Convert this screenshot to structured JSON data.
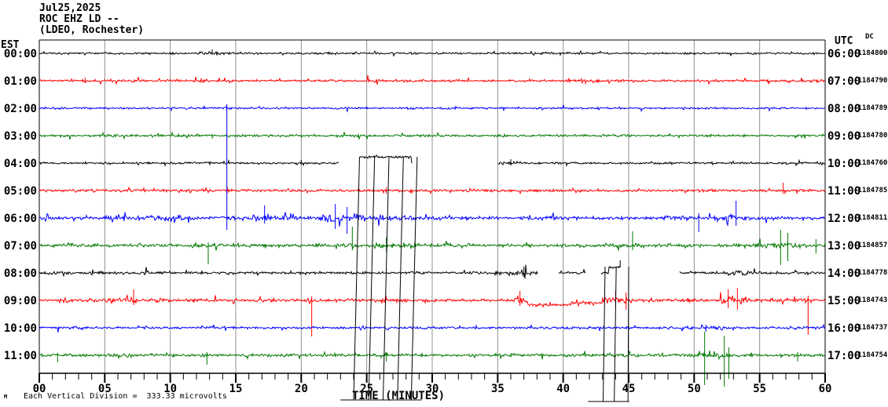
{
  "header": {
    "date": "Jul25,2025",
    "station_code": "ROC EHZ LD --",
    "station_name": "(LDEO, Rochester)"
  },
  "axes": {
    "left_header": "EST",
    "right_header": "UTC",
    "dc_header": "DC",
    "x_title": "TIME (MINUTES)",
    "x_ticks": [
      "00",
      "05",
      "10",
      "15",
      "20",
      "25",
      "30",
      "35",
      "40",
      "45",
      "50",
      "55",
      "60"
    ],
    "minutes_span": 60
  },
  "footer": {
    "watermark": "M",
    "scale_note": "Each Vertical Division =  333.33 microvolts"
  },
  "colors": {
    "black": "#000000",
    "red": "#ff0000",
    "blue": "#0000ff",
    "green": "#007700",
    "grid": "#909090",
    "frame": "#000000",
    "background": "#ffffff"
  },
  "chart_data": {
    "type": "seismogram-helicorder",
    "station": "ROC EHZ LD (LDEO, Rochester)",
    "x_range_minutes": [
      0,
      60
    ],
    "minutes_per_row": 60,
    "rows": [
      {
        "est": "00:00",
        "utc": "06:00",
        "dc": "-1184800",
        "color": "#000000",
        "base_amp": 1.7,
        "bursts": [
          [
            12.3,
            14.2,
            3.0
          ],
          [
            19.5,
            20.3,
            2.6
          ]
        ],
        "gaps": [],
        "offsets": [],
        "spikes": [
          [
            13.2,
            5,
            2
          ]
        ]
      },
      {
        "est": "01:00",
        "utc": "07:00",
        "dc": "-1184790",
        "color": "#ff0000",
        "base_amp": 2.1,
        "bursts": [
          [
            25,
            26,
            2.8
          ]
        ],
        "gaps": [],
        "offsets": [],
        "spikes": [
          [
            3.5,
            4,
            3
          ]
        ]
      },
      {
        "est": "02:00",
        "utc": "08:00",
        "dc": "-1184789",
        "color": "#0000ff",
        "base_amp": 1.7,
        "bursts": [],
        "gaps": [],
        "offsets": [],
        "spikes": [
          [
            14.3,
            3,
            3
          ]
        ]
      },
      {
        "est": "03:00",
        "utc": "09:00",
        "dc": "-1184780",
        "color": "#007700",
        "base_amp": 2.1,
        "bursts": [],
        "gaps": [],
        "offsets": [],
        "spikes": [
          [
            13.2,
            2,
            4
          ]
        ]
      },
      {
        "est": "04:00",
        "utc": "10:00",
        "dc": "-1184760",
        "color": "#000000",
        "base_amp": 1.8,
        "bursts": [
          [
            24.45,
            28.4,
            2.0
          ],
          [
            35,
            36.8,
            3.2
          ],
          [
            47,
            48,
            2.6
          ]
        ],
        "gaps": [
          [
            22.9,
            24.45
          ],
          [
            28.45,
            35.0
          ]
        ],
        "offsets": [
          [
            24.45,
            28.4,
            -8
          ]
        ],
        "spikes": [
          [
            20.0,
            4,
            2
          ],
          [
            36.0,
            5,
            3
          ]
        ]
      },
      {
        "est": "05:00",
        "utc": "11:00",
        "dc": "-1184785",
        "color": "#ff0000",
        "base_amp": 2.2,
        "bursts": [
          [
            0,
            3,
            2.8
          ]
        ],
        "gaps": [],
        "offsets": [],
        "spikes": [
          [
            14.35,
            5,
            4
          ],
          [
            26.5,
            4,
            4
          ],
          [
            56.8,
            10,
            4
          ]
        ]
      },
      {
        "est": "06:00",
        "utc": "12:00",
        "dc": "-1184811",
        "color": "#0000ff",
        "base_amp": 2.6,
        "bursts": [
          [
            5.5,
            12,
            4.8
          ],
          [
            13,
            16.2,
            3.4
          ],
          [
            16.2,
            19.5,
            5
          ],
          [
            21.3,
            24.6,
            8.5
          ],
          [
            24.6,
            28,
            4.5
          ],
          [
            28,
            33,
            3.6
          ],
          [
            36.5,
            40.5,
            4.2
          ],
          [
            47.5,
            50.5,
            4
          ],
          [
            51.5,
            54,
            5.5
          ]
        ],
        "gaps": [],
        "offsets": [],
        "spikes": [
          [
            14.32,
            145,
            15
          ],
          [
            17.2,
            16,
            7
          ],
          [
            22.6,
            18,
            14
          ],
          [
            23.5,
            14,
            20
          ],
          [
            50.35,
            6,
            18
          ],
          [
            53.2,
            22,
            10
          ]
        ]
      },
      {
        "est": "07:00",
        "utc": "13:00",
        "dc": "-1184857",
        "color": "#007700",
        "base_amp": 2.7,
        "bursts": [
          [
            11.5,
            14,
            3.8
          ],
          [
            22.5,
            24.5,
            3.8
          ],
          [
            25.5,
            29,
            4.6
          ],
          [
            30.8,
            33,
            4.2
          ],
          [
            43,
            46,
            3.8
          ],
          [
            54.5,
            58.5,
            5.5
          ]
        ],
        "gaps": [],
        "offsets": [],
        "spikes": [
          [
            12.9,
            4,
            24
          ],
          [
            23.9,
            24,
            6
          ],
          [
            26.5,
            10,
            8
          ],
          [
            45.3,
            18,
            6
          ],
          [
            56.6,
            20,
            25
          ],
          [
            57.15,
            16,
            20
          ],
          [
            59.3,
            8,
            10
          ]
        ]
      },
      {
        "est": "08:00",
        "utc": "14:00",
        "dc": "-1184778",
        "color": "#000000",
        "base_amp": 2.3,
        "bursts": [
          [
            0,
            2.2,
            3.0
          ],
          [
            7.8,
            9.2,
            3.4
          ],
          [
            34.8,
            38,
            4.4
          ],
          [
            52.5,
            54.5,
            4.2
          ]
        ],
        "gaps": [
          [
            38.05,
            39.6
          ],
          [
            41.75,
            42.9
          ],
          [
            44.4,
            48.9
          ]
        ],
        "offsets": [
          [
            43.45,
            44.4,
            -7
          ]
        ],
        "spikes": [
          [
            37.0,
            8,
            5
          ],
          [
            44.35,
            9,
            0
          ]
        ]
      },
      {
        "est": "09:00",
        "utc": "15:00",
        "dc": "-1184743",
        "color": "#ff0000",
        "base_amp": 2.7,
        "bursts": [
          [
            1.5,
            3.2,
            4
          ],
          [
            5,
            7.5,
            4.8
          ],
          [
            8.5,
            10,
            3.4
          ],
          [
            20.3,
            21.6,
            3.8
          ],
          [
            23.5,
            25,
            3.4
          ],
          [
            36.3,
            37.3,
            6.5
          ],
          [
            43,
            45.4,
            5.5
          ],
          [
            48,
            50,
            3.4
          ],
          [
            52,
            54.2,
            7.5
          ],
          [
            57.8,
            59.2,
            4
          ]
        ],
        "gaps": [],
        "offsets": [
          [
            37.3,
            40.6,
            6
          ],
          [
            40.6,
            43.0,
            3
          ]
        ],
        "spikes": [
          [
            7.2,
            14,
            6
          ],
          [
            20.8,
            5,
            46
          ],
          [
            36.7,
            12,
            7
          ],
          [
            44.0,
            12,
            9
          ],
          [
            44.8,
            10,
            12
          ],
          [
            52.6,
            14,
            10
          ],
          [
            53.3,
            16,
            12
          ],
          [
            58.7,
            6,
            44
          ]
        ]
      },
      {
        "est": "10:00",
        "utc": "16:00",
        "dc": "-1184737",
        "color": "#0000ff",
        "base_amp": 2.1,
        "bursts": [
          [
            49,
            53,
            2.8
          ],
          [
            57,
            60,
            2.6
          ]
        ],
        "gaps": [],
        "offsets": [],
        "spikes": [
          [
            50.9,
            4,
            5
          ]
        ]
      },
      {
        "est": "11:00",
        "utc": "17:00",
        "dc": "-1184754",
        "color": "#007700",
        "base_amp": 2.5,
        "bursts": [
          [
            43,
            46,
            3.4
          ],
          [
            49.5,
            53,
            3.6
          ]
        ],
        "gaps": [],
        "offsets": [],
        "spikes": [
          [
            1.4,
            3,
            9
          ],
          [
            12.8,
            4,
            12
          ],
          [
            26.5,
            3,
            8
          ],
          [
            50.8,
            30,
            38
          ],
          [
            52.3,
            25,
            40
          ],
          [
            52.65,
            10,
            30
          ],
          [
            57.9,
            4,
            8
          ]
        ]
      }
    ],
    "event_lines": [
      {
        "bar": {
          "x0_min": 23.0,
          "x1_min": 29.2,
          "y_below": 34
        },
        "lines": [
          {
            "top_min": 24.45,
            "bottom_min": 24.0,
            "from_row": 4
          },
          {
            "top_min": 25.6,
            "bottom_min": 25.15,
            "from_row": 4
          },
          {
            "top_min": 26.7,
            "bottom_min": 26.25,
            "from_row": 4
          },
          {
            "top_min": 27.8,
            "bottom_min": 27.35,
            "from_row": 4
          },
          {
            "top_min": 28.85,
            "bottom_min": 28.4,
            "from_row": 4
          }
        ]
      },
      {
        "bar": {
          "x0_min": 41.9,
          "x1_min": 45.05,
          "y_below": 36
        },
        "lines": [
          {
            "top_min": 43.2,
            "bottom_min": 43.05,
            "from_row": 8
          },
          {
            "top_min": 44.05,
            "bottom_min": 43.9,
            "from_row": 8
          },
          {
            "top_min": 45.0,
            "bottom_min": 44.95,
            "from_row": 8
          }
        ]
      }
    ]
  }
}
